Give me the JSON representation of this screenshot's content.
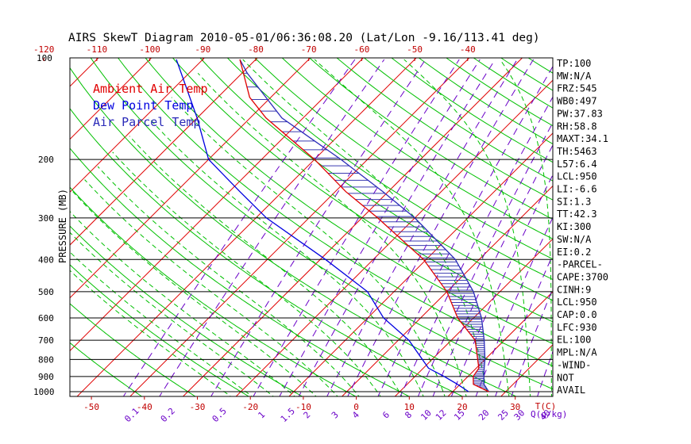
{
  "title": "AIRS SkewT Diagram 2010-05-01/06:36:08.20 (Lat/Lon -9.16/113.41 deg)",
  "legend": [
    {
      "label": "Ambient Air Temp",
      "color": "#e00000"
    },
    {
      "label": "Dew Point Temp",
      "color": "#0000e0"
    },
    {
      "label": "Air Parcel Temp",
      "color": "#2a2ab8"
    }
  ],
  "chart_data": {
    "type": "skewt",
    "ylabel": "PRESSURE (MB)",
    "xlabel": "T(C)",
    "mixing_ratio_label": "Q(g/kg)",
    "pressure_ticks": [
      100,
      200,
      300,
      400,
      500,
      600,
      700,
      800,
      900,
      1000
    ],
    "top_temp_ticks": [
      -120,
      -110,
      -100,
      -90,
      -80,
      -70,
      -60,
      -50,
      -40
    ],
    "bottom_temp_ticks": [
      -50,
      -40,
      -30,
      -20,
      -10,
      0,
      10,
      20,
      30
    ],
    "mixing_ratio_ticks": [
      "0.1",
      "0.2",
      "0.5",
      "1",
      "1.5",
      "2",
      "3",
      "4",
      "6",
      "8",
      "10",
      "12",
      "15",
      "20",
      "25",
      "30",
      "40"
    ],
    "temperature": [
      {
        "p": 1000,
        "t": 26.8
      },
      {
        "p": 950,
        "t": 22.5
      },
      {
        "p": 900,
        "t": 21.0
      },
      {
        "p": 850,
        "t": 20.5
      },
      {
        "p": 700,
        "t": 14.5
      },
      {
        "p": 600,
        "t": 7.0
      },
      {
        "p": 500,
        "t": 0.0
      },
      {
        "p": 400,
        "t": -10.5
      },
      {
        "p": 300,
        "t": -27.0
      },
      {
        "p": 250,
        "t": -38.0
      },
      {
        "p": 200,
        "t": -50.0
      },
      {
        "p": 150,
        "t": -67.0
      },
      {
        "p": 130,
        "t": -74.0
      },
      {
        "p": 100,
        "t": -83.0
      }
    ],
    "dewpoint": [
      {
        "p": 1000,
        "t": 23.0
      },
      {
        "p": 950,
        "t": 19.5
      },
      {
        "p": 900,
        "t": 15.5
      },
      {
        "p": 850,
        "t": 11.0
      },
      {
        "p": 700,
        "t": 2.0
      },
      {
        "p": 600,
        "t": -7.0
      },
      {
        "p": 500,
        "t": -15.0
      },
      {
        "p": 400,
        "t": -29.0
      },
      {
        "p": 300,
        "t": -48.0
      },
      {
        "p": 250,
        "t": -58.0
      },
      {
        "p": 200,
        "t": -70.0
      },
      {
        "p": 150,
        "t": -80.0
      },
      {
        "p": 100,
        "t": -95.0
      }
    ],
    "parcel": [
      {
        "p": 1000,
        "t": 26.8
      },
      {
        "p": 950,
        "t": 24.5
      },
      {
        "p": 900,
        "t": 23.0
      },
      {
        "p": 850,
        "t": 21.5
      },
      {
        "p": 800,
        "t": 20.0
      },
      {
        "p": 700,
        "t": 16.2
      },
      {
        "p": 600,
        "t": 11.5
      },
      {
        "p": 500,
        "t": 5.0
      },
      {
        "p": 400,
        "t": -4.5
      },
      {
        "p": 300,
        "t": -20.0
      },
      {
        "p": 250,
        "t": -31.0
      },
      {
        "p": 200,
        "t": -45.0
      },
      {
        "p": 150,
        "t": -64.0
      },
      {
        "p": 110,
        "t": -79.0
      },
      {
        "p": 100,
        "t": -83.0
      }
    ]
  },
  "indices": [
    "TP:100",
    "MW:N/A",
    "FRZ:545",
    "WB0:497",
    "PW:37.83",
    "RH:58.8",
    "MAXT:34.1",
    "TH:5463",
    "L57:6.4",
    "LCL:950",
    "LI:-6.6",
    "SI:1.3",
    "TT:42.3",
    "KI:300",
    "SW:N/A",
    "EI:0.2",
    "-PARCEL-",
    "CAPE:3700",
    "CINH:9",
    "LCL:950",
    "CAP:0.0",
    "LFC:930",
    "EL:100",
    "MPL:N/A",
    "-WIND-",
    "NOT",
    "AVAIL"
  ],
  "colors": {
    "isotherm": "#e00000",
    "dry_adiabat": "#00c000",
    "moist_adiabat": "#00c000",
    "mixing_ratio": "#6a00c8",
    "temperature": "#e00000",
    "dewpoint": "#0000e0",
    "parcel": "#2a2ab8",
    "cape_fill": "#3a3ab0",
    "ticks": "#c00000"
  }
}
